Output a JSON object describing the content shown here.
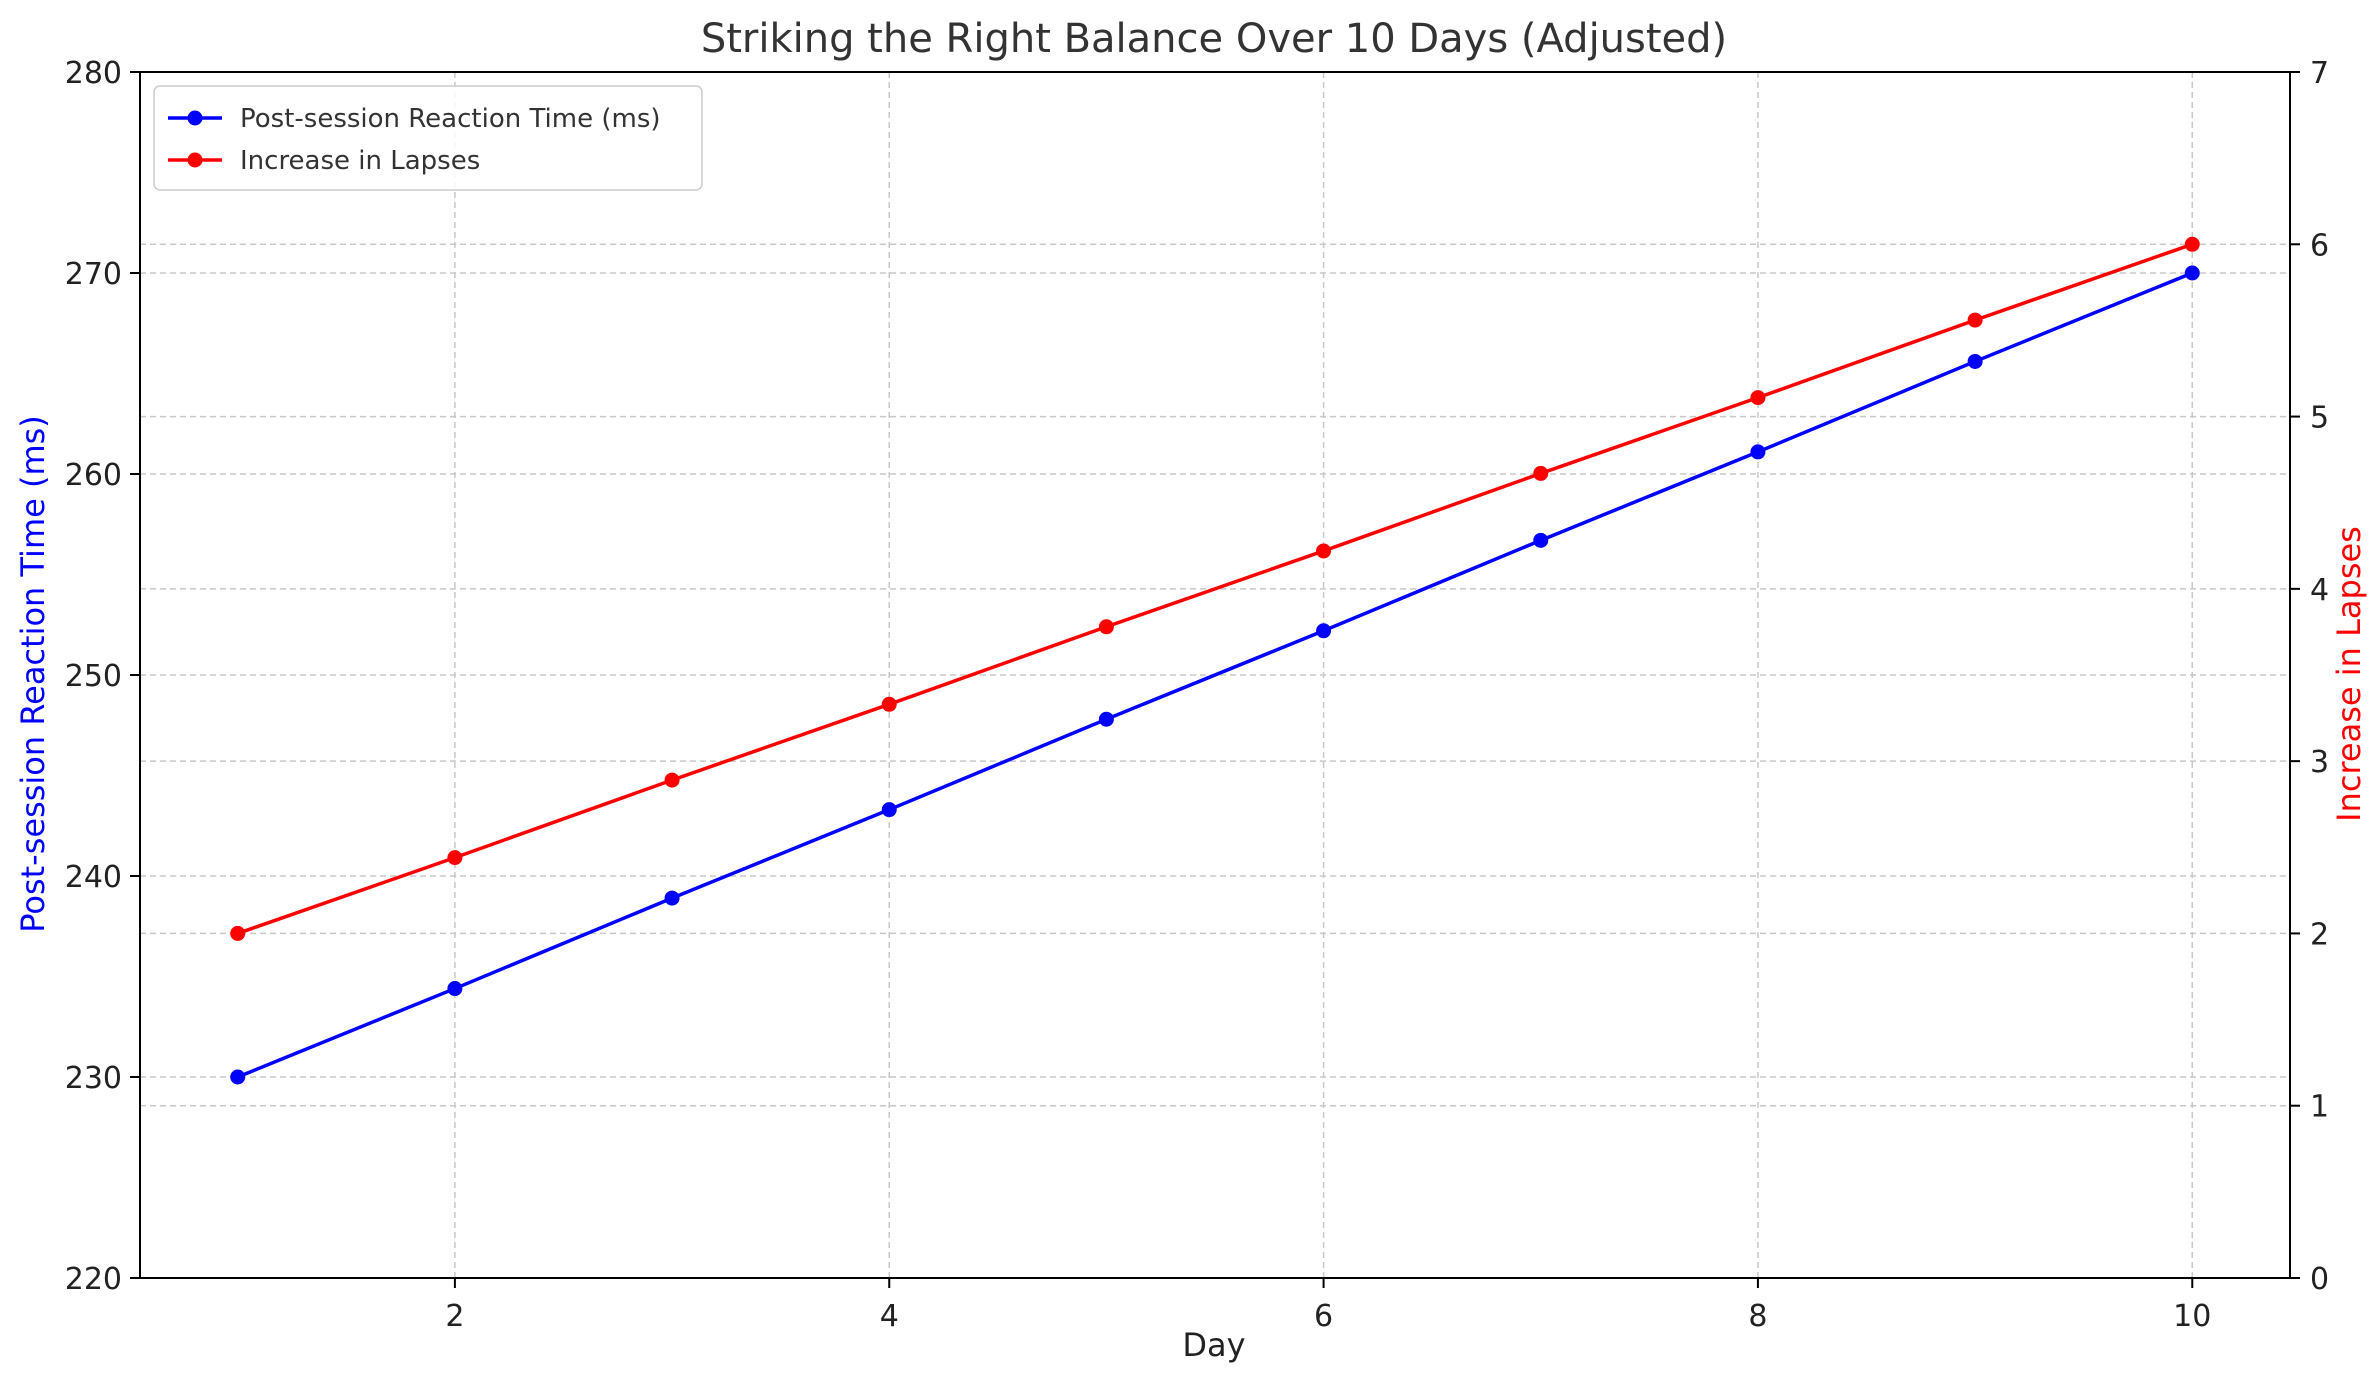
{
  "chart_data": {
    "type": "line",
    "title": "Striking the Right Balance Over 10 Days (Adjusted)",
    "xlabel": "Day",
    "ylabel_left": "Post-session Reaction Time (ms)",
    "ylabel_right": "Increase in Lapses",
    "xlim": [
      0.55,
      10.45
    ],
    "ylim_left": [
      220,
      280
    ],
    "ylim_right": [
      0,
      7
    ],
    "x_ticks": [
      2,
      4,
      6,
      8,
      10
    ],
    "y_ticks_left": [
      220,
      230,
      240,
      250,
      260,
      270,
      280
    ],
    "y_ticks_right": [
      0,
      1,
      2,
      3,
      4,
      5,
      6,
      7
    ],
    "grid": true,
    "legend_position": "top-left",
    "series": [
      {
        "name": "Post-session Reaction Time (ms)",
        "axis": "left",
        "color": "#0000ff",
        "x": [
          1,
          2,
          3,
          4,
          5,
          6,
          7,
          8,
          9,
          10
        ],
        "values": [
          230,
          234.4,
          238.9,
          243.3,
          247.8,
          252.2,
          256.7,
          261.1,
          265.6,
          270
        ]
      },
      {
        "name": "Increase in Lapses",
        "axis": "right",
        "color": "#ff0000",
        "x": [
          1,
          2,
          3,
          4,
          5,
          6,
          7,
          8,
          9,
          10
        ],
        "values": [
          2,
          2.44,
          2.89,
          3.33,
          3.78,
          4.22,
          4.67,
          5.11,
          5.56,
          6
        ]
      }
    ]
  }
}
